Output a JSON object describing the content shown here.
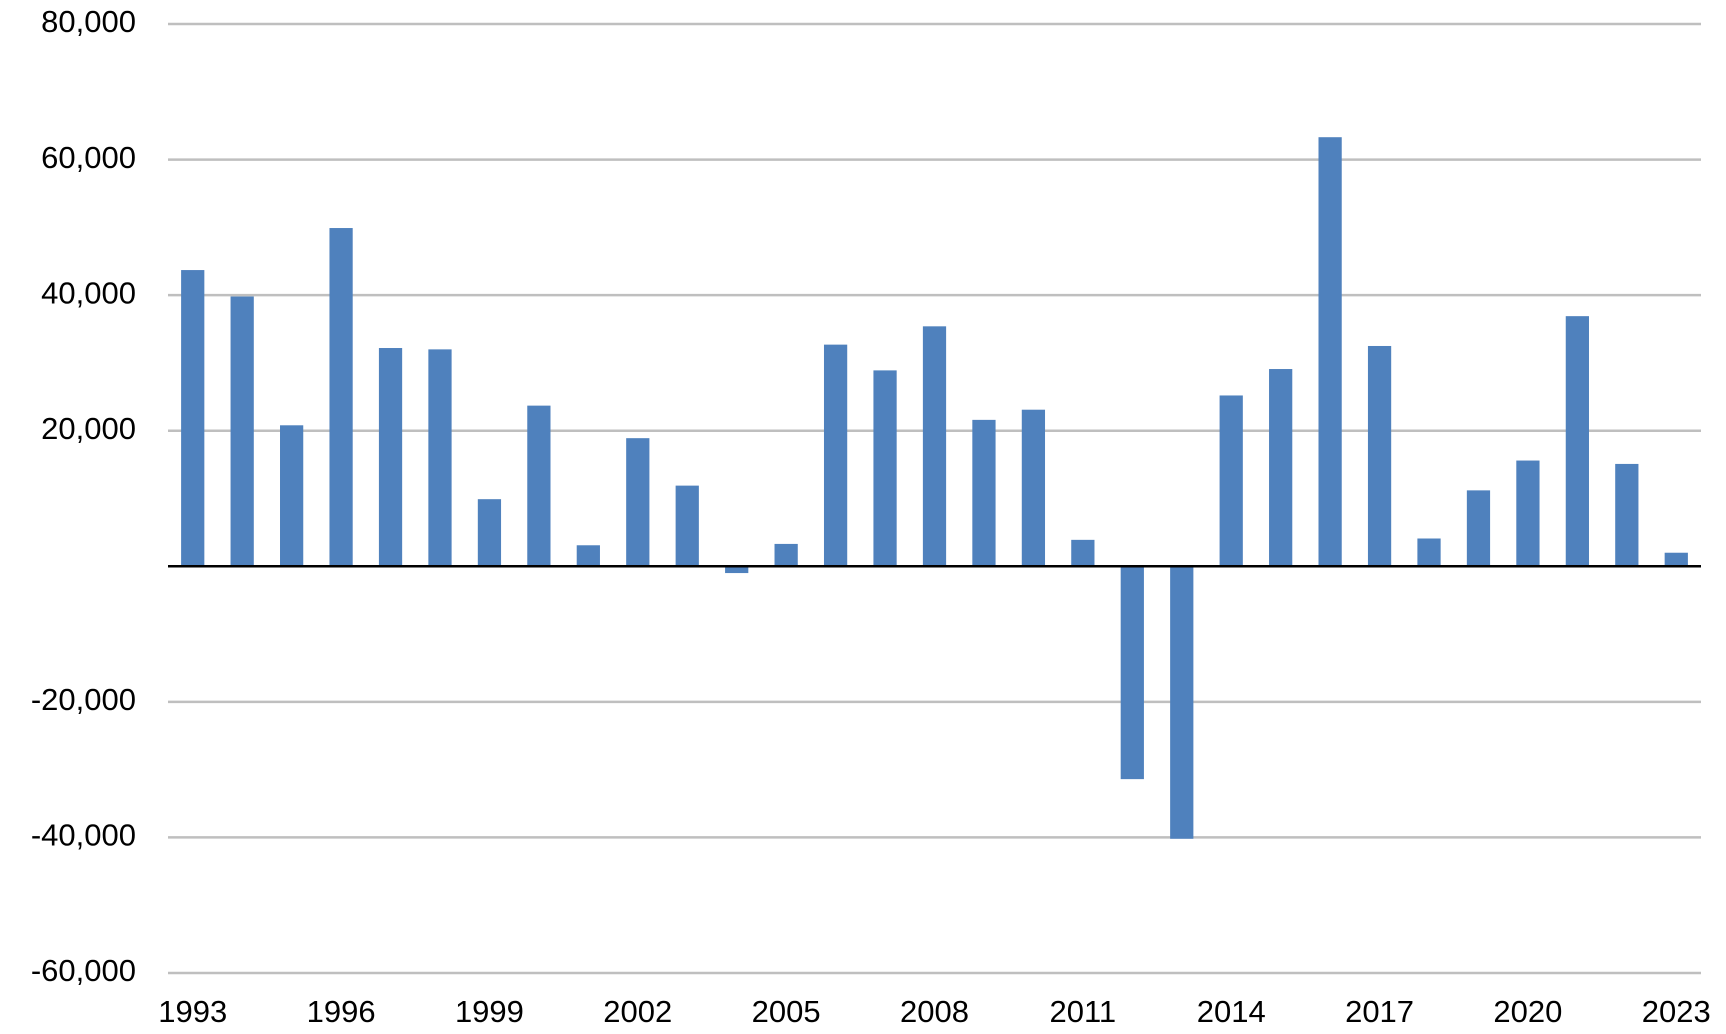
{
  "chart_data": {
    "type": "bar",
    "categories": [
      "1993",
      null,
      null,
      "1996",
      null,
      null,
      "1999",
      null,
      null,
      "2002",
      null,
      null,
      "2005",
      null,
      null,
      "2008",
      null,
      null,
      "2011",
      null,
      null,
      "2014",
      null,
      null,
      "2017",
      null,
      null,
      "2020",
      null,
      null,
      "2023"
    ],
    "values": [
      43700,
      39800,
      20800,
      49900,
      32200,
      32000,
      9900,
      23700,
      3100,
      18900,
      11900,
      -1000,
      3300,
      32700,
      28900,
      35400,
      21600,
      23100,
      3900,
      -31400,
      -40200,
      25200,
      29100,
      63300,
      32500,
      4100,
      11200,
      15600,
      36900,
      15100,
      2000
    ],
    "color": "#4f81bd",
    "ylim": [
      -60000,
      80000
    ],
    "yticks": [
      {
        "value": -60000,
        "label": "-60,000"
      },
      {
        "value": -40000,
        "label": "-40,000"
      },
      {
        "value": -20000,
        "label": "-20,000"
      },
      {
        "value": 20000,
        "label": "20,000"
      },
      {
        "value": 40000,
        "label": "40,000"
      },
      {
        "value": 60000,
        "label": "60,000"
      },
      {
        "value": 80000,
        "label": "80,000"
      }
    ],
    "grid": true
  }
}
